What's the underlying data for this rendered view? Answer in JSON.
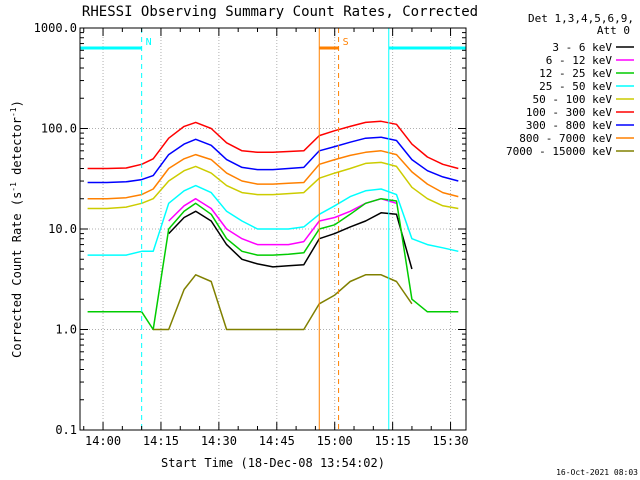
{
  "chart_data": {
    "type": "line",
    "title": "RHESSI Observing Summary Count Rates, Corrected",
    "xlabel": "Start Time (18-Dec-08 13:54:02)",
    "ylabel_main": "Corrected Count Rate (s",
    "ylabel_sup1": "-1",
    "ylabel_mid": " detector",
    "ylabel_sup2": "-1",
    "ylabel_end": ")",
    "y_scale": "log",
    "ylim": [
      0.1,
      1000
    ],
    "xlim": [
      "13:54:02",
      "15:34:00"
    ],
    "x_ticks": [
      "14:00",
      "14:15",
      "14:30",
      "14:45",
      "15:00",
      "15:15",
      "15:30"
    ],
    "y_ticks": [
      "0.1",
      "1.0",
      "10.0",
      "100.0",
      "1000.0"
    ],
    "grid": true,
    "legend_header": [
      "Det 1,3,4,5,6,9,",
      "Att 0"
    ],
    "legend_position": "right",
    "x": [
      "13:56",
      "14:01",
      "14:06",
      "14:10",
      "14:13",
      "14:17",
      "14:21",
      "14:24",
      "14:28",
      "14:32",
      "14:36",
      "14:40",
      "14:44",
      "14:48",
      "14:52",
      "14:56",
      "15:00",
      "15:04",
      "15:08",
      "15:12",
      "15:16",
      "15:20",
      "15:24",
      "15:28",
      "15:32"
    ],
    "series": [
      {
        "name": "3 - 6 keV",
        "color": "#000000",
        "values": [
          null,
          null,
          null,
          null,
          null,
          9,
          13,
          15,
          12,
          7,
          5,
          4.5,
          4.2,
          4.3,
          4.4,
          8,
          9,
          10.5,
          12,
          14.5,
          14,
          4,
          null,
          null,
          null
        ]
      },
      {
        "name": "6 - 12 keV",
        "color": "#ff00ff",
        "values": [
          null,
          null,
          null,
          null,
          null,
          12,
          17,
          20,
          16,
          10,
          8,
          7,
          7,
          7,
          7.5,
          12,
          13,
          15,
          18,
          20,
          18,
          null,
          null,
          null,
          null
        ]
      },
      {
        "name": "12 - 25 keV",
        "color": "#00cc00",
        "values": [
          1.5,
          1.5,
          1.5,
          1.5,
          1,
          10,
          15,
          18,
          14,
          8,
          6,
          5.5,
          5.5,
          5.6,
          5.8,
          10,
          11,
          14,
          18,
          20,
          19,
          2,
          1.5,
          1.5,
          1.5
        ]
      },
      {
        "name": "25 - 50 keV",
        "color": "#00ffff",
        "values": [
          5.5,
          5.5,
          5.5,
          6,
          6,
          18,
          24,
          27,
          23,
          15,
          12,
          10,
          10,
          10,
          10.5,
          14,
          17,
          21,
          24,
          25,
          22,
          8,
          7,
          6.5,
          6
        ]
      },
      {
        "name": "50 - 100 keV",
        "color": "#cccc00",
        "values": [
          16,
          16,
          16.5,
          18,
          20,
          30,
          38,
          42,
          36,
          27,
          23,
          22,
          22,
          22.5,
          23,
          32,
          36,
          40,
          45,
          46,
          42,
          26,
          20,
          17,
          16
        ]
      },
      {
        "name": "100 - 300 keV",
        "color": "#ff0000",
        "values": [
          40,
          40,
          40.5,
          44,
          50,
          80,
          105,
          115,
          100,
          72,
          60,
          58,
          58,
          59,
          60,
          85,
          95,
          105,
          115,
          118,
          110,
          70,
          52,
          44,
          40
        ]
      },
      {
        "name": "300 - 800 keV",
        "color": "#0000ff",
        "values": [
          29,
          29,
          29.5,
          31,
          34,
          55,
          70,
          78,
          68,
          49,
          41,
          39,
          39,
          40,
          41,
          60,
          66,
          73,
          80,
          82,
          76,
          49,
          38,
          33,
          30
        ]
      },
      {
        "name": "800 - 7000 keV",
        "color": "#ff8000",
        "values": [
          20,
          20,
          20.5,
          22,
          25,
          40,
          50,
          55,
          49,
          36,
          30,
          28,
          28,
          28.5,
          29,
          44,
          49,
          54,
          58,
          60,
          55,
          37,
          28,
          23,
          21
        ]
      },
      {
        "name": "7000 - 15000 keV",
        "color": "#808000",
        "values": [
          null,
          null,
          null,
          null,
          1,
          1,
          2.5,
          3.5,
          3,
          1,
          1,
          1,
          1,
          1,
          1,
          1.8,
          2.2,
          3,
          3.5,
          3.5,
          3,
          1.8,
          null,
          null,
          null
        ]
      }
    ],
    "intervals": [
      {
        "label": "N",
        "color": "#00ffff",
        "start": "13:54:02",
        "end": "14:10"
      },
      {
        "label": "",
        "color": "#00ffff",
        "start": "15:14",
        "end": "15:34:00"
      },
      {
        "label": "S",
        "color": "#ff8000",
        "start": "14:56",
        "end": "15:01"
      }
    ]
  },
  "footer": {
    "timestamp": "16-Oct-2021 08:03"
  }
}
